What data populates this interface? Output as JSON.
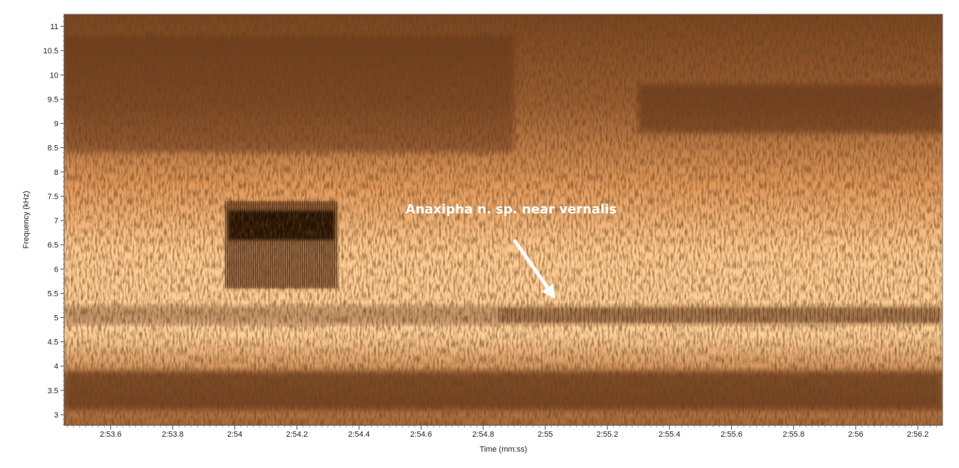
{
  "chart_data": {
    "type": "heatmap",
    "subtype": "spectrogram",
    "xlabel": "Time (mm:ss)",
    "ylabel": "Frequency (kHz)",
    "xlim": [
      173.45,
      176.28
    ],
    "ylim": [
      2.78,
      11.25
    ],
    "x_ticks": [
      {
        "value": 173.6,
        "label": "2:53.6"
      },
      {
        "value": 173.8,
        "label": "2:53.8"
      },
      {
        "value": 174.0,
        "label": "2:54"
      },
      {
        "value": 174.2,
        "label": "2:54.2"
      },
      {
        "value": 174.4,
        "label": "2:54.4"
      },
      {
        "value": 174.6,
        "label": "2:54.6"
      },
      {
        "value": 174.8,
        "label": "2:54.8"
      },
      {
        "value": 175.0,
        "label": "2:55"
      },
      {
        "value": 175.2,
        "label": "2:55.2"
      },
      {
        "value": 175.4,
        "label": "2:55.4"
      },
      {
        "value": 175.6,
        "label": "2:55.6"
      },
      {
        "value": 175.8,
        "label": "2:55.8"
      },
      {
        "value": 176.0,
        "label": "2:56"
      },
      {
        "value": 176.2,
        "label": "2:56.2"
      }
    ],
    "y_ticks": [
      {
        "value": 3,
        "label": "3"
      },
      {
        "value": 3.5,
        "label": "3.5"
      },
      {
        "value": 4,
        "label": "4"
      },
      {
        "value": 4.5,
        "label": "4.5"
      },
      {
        "value": 5,
        "label": "5"
      },
      {
        "value": 5.5,
        "label": "5.5"
      },
      {
        "value": 6,
        "label": "6"
      },
      {
        "value": 6.5,
        "label": "6.5"
      },
      {
        "value": 7,
        "label": "7"
      },
      {
        "value": 7.5,
        "label": "7.5"
      },
      {
        "value": 8,
        "label": "8"
      },
      {
        "value": 8.5,
        "label": "8.5"
      },
      {
        "value": 9,
        "label": "9"
      },
      {
        "value": 9.5,
        "label": "9.5"
      },
      {
        "value": 10,
        "label": "10"
      },
      {
        "value": 10.5,
        "label": "10.5"
      },
      {
        "value": 11,
        "label": "11"
      }
    ],
    "energy_bands": [
      {
        "x_start": 173.45,
        "x_end": 176.28,
        "f_low": 3.1,
        "f_high": 3.9,
        "intensity": 0.9
      },
      {
        "x_start": 173.45,
        "x_end": 176.28,
        "f_low": 4.85,
        "f_high": 5.25,
        "intensity": 0.45
      },
      {
        "x_start": 173.45,
        "x_end": 174.9,
        "f_low": 8.4,
        "f_high": 10.8,
        "intensity": 0.6
      },
      {
        "x_start": 175.3,
        "x_end": 176.28,
        "f_low": 8.8,
        "f_high": 9.8,
        "intensity": 0.75
      }
    ],
    "call_events": [
      {
        "x_start": 173.97,
        "x_end": 174.33,
        "f_low": 5.6,
        "f_high": 7.4,
        "peak_low": 6.6,
        "peak_high": 7.2,
        "intensity": 1.0
      },
      {
        "x_start": 174.85,
        "x_end": 176.28,
        "f_low": 4.9,
        "f_high": 5.2,
        "intensity": 0.55,
        "label_ref": 0
      }
    ],
    "annotations": [
      {
        "text": "Anaxipha n. sp. near vernalis",
        "text_time": 174.55,
        "text_freq": 7.15,
        "arrow_from": [
          174.9,
          6.6
        ],
        "arrow_to": [
          175.02,
          5.5
        ]
      }
    ],
    "colors": {
      "background": "#f2a96d",
      "light": "#ffd09a",
      "mid": "#c77d4a",
      "dark": "#5a2e14",
      "darkest": "#1e0c04",
      "annotation": "#ffffff"
    }
  }
}
